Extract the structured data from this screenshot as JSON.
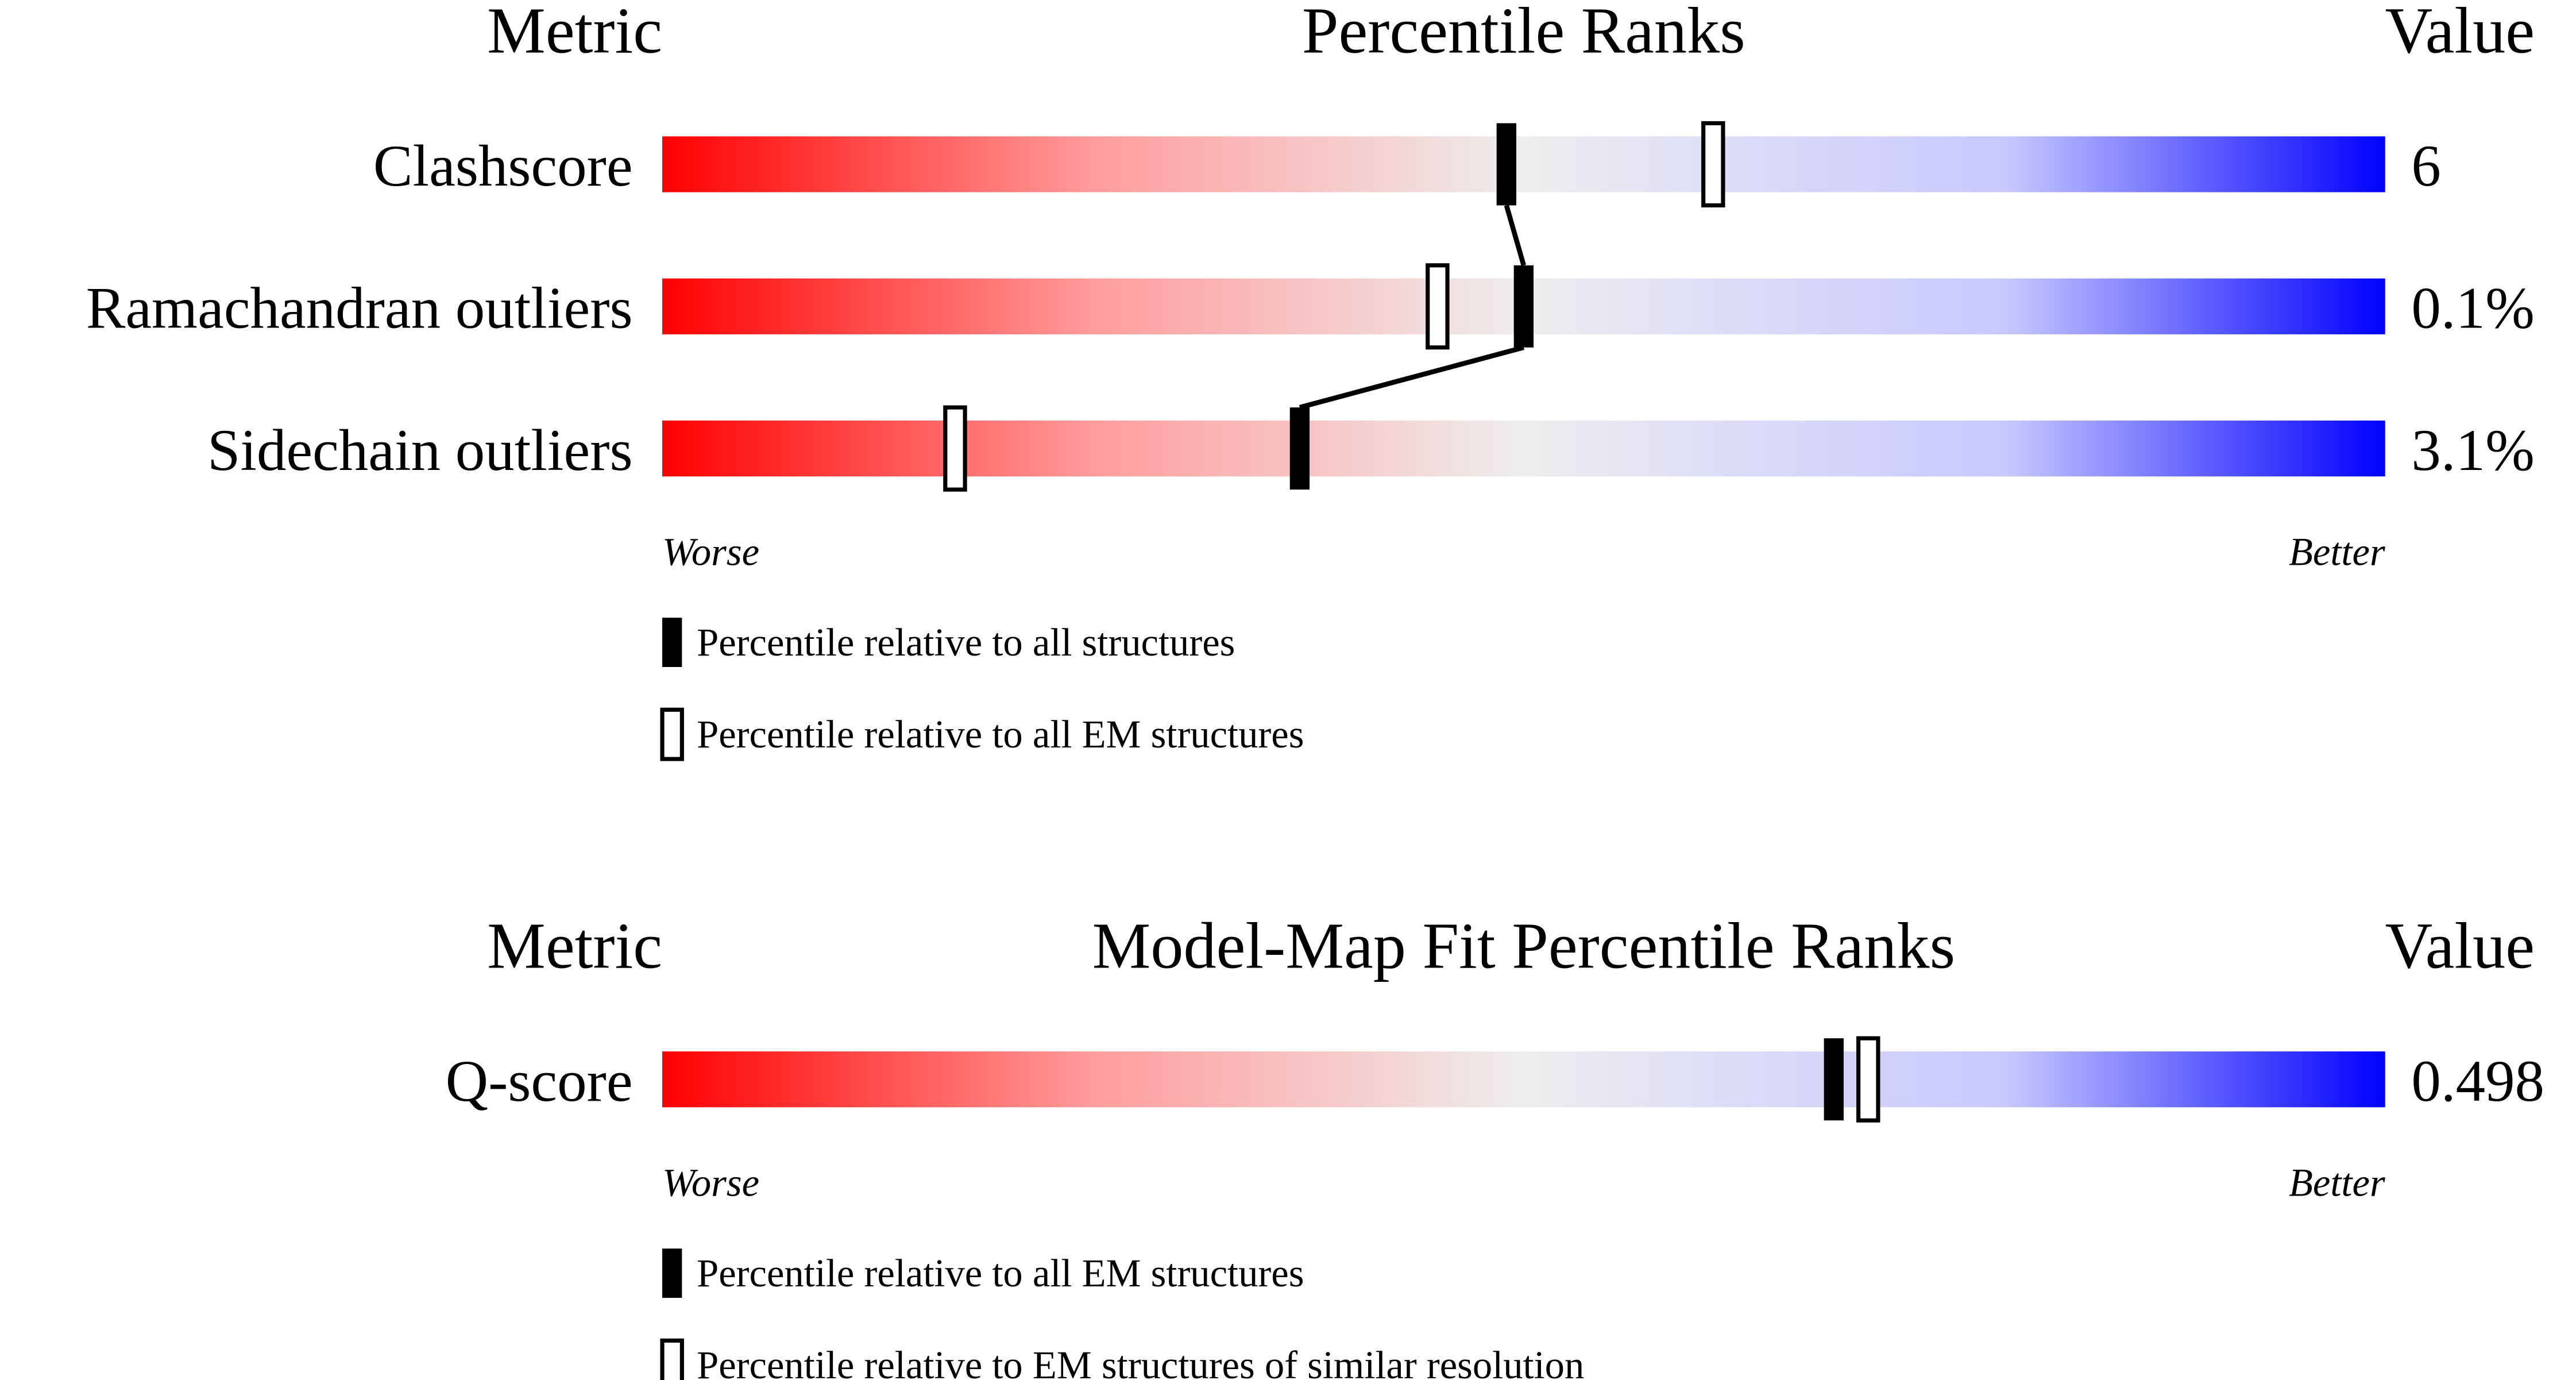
{
  "chart_data": [
    {
      "type": "percentile-slider",
      "metric_header": "Metric",
      "title": "Percentile Ranks",
      "value_header": "Value",
      "categories": [
        "Clashscore",
        "Ramachandran outliers",
        "Sidechain outliers"
      ],
      "metric_values": [
        "6",
        "0.1%",
        "3.1%"
      ],
      "xlim": [
        0,
        100
      ],
      "low_label": "Worse",
      "high_label": "Better",
      "series": [
        {
          "name": "Percentile relative to all structures",
          "color": "#000000",
          "marker": "filled",
          "connect": true,
          "values": [
            49,
            50,
            37
          ]
        },
        {
          "name": "Percentile relative to all EM structures",
          "color": "#000000",
          "marker": "open",
          "connect": false,
          "values": [
            61,
            45,
            17
          ]
        }
      ]
    },
    {
      "type": "percentile-slider",
      "metric_header": "Metric",
      "title": "Model-Map Fit Percentile Ranks",
      "value_header": "Value",
      "categories": [
        "Q-score"
      ],
      "metric_values": [
        "0.498"
      ],
      "xlim": [
        0,
        100
      ],
      "low_label": "Worse",
      "high_label": "Better",
      "series": [
        {
          "name": "Percentile relative to all EM structures",
          "color": "#000000",
          "marker": "filled",
          "connect": false,
          "values": [
            68
          ]
        },
        {
          "name": "Percentile relative to EM structures of similar resolution",
          "color": "#000000",
          "marker": "open",
          "connect": false,
          "values": [
            70
          ]
        }
      ]
    }
  ]
}
